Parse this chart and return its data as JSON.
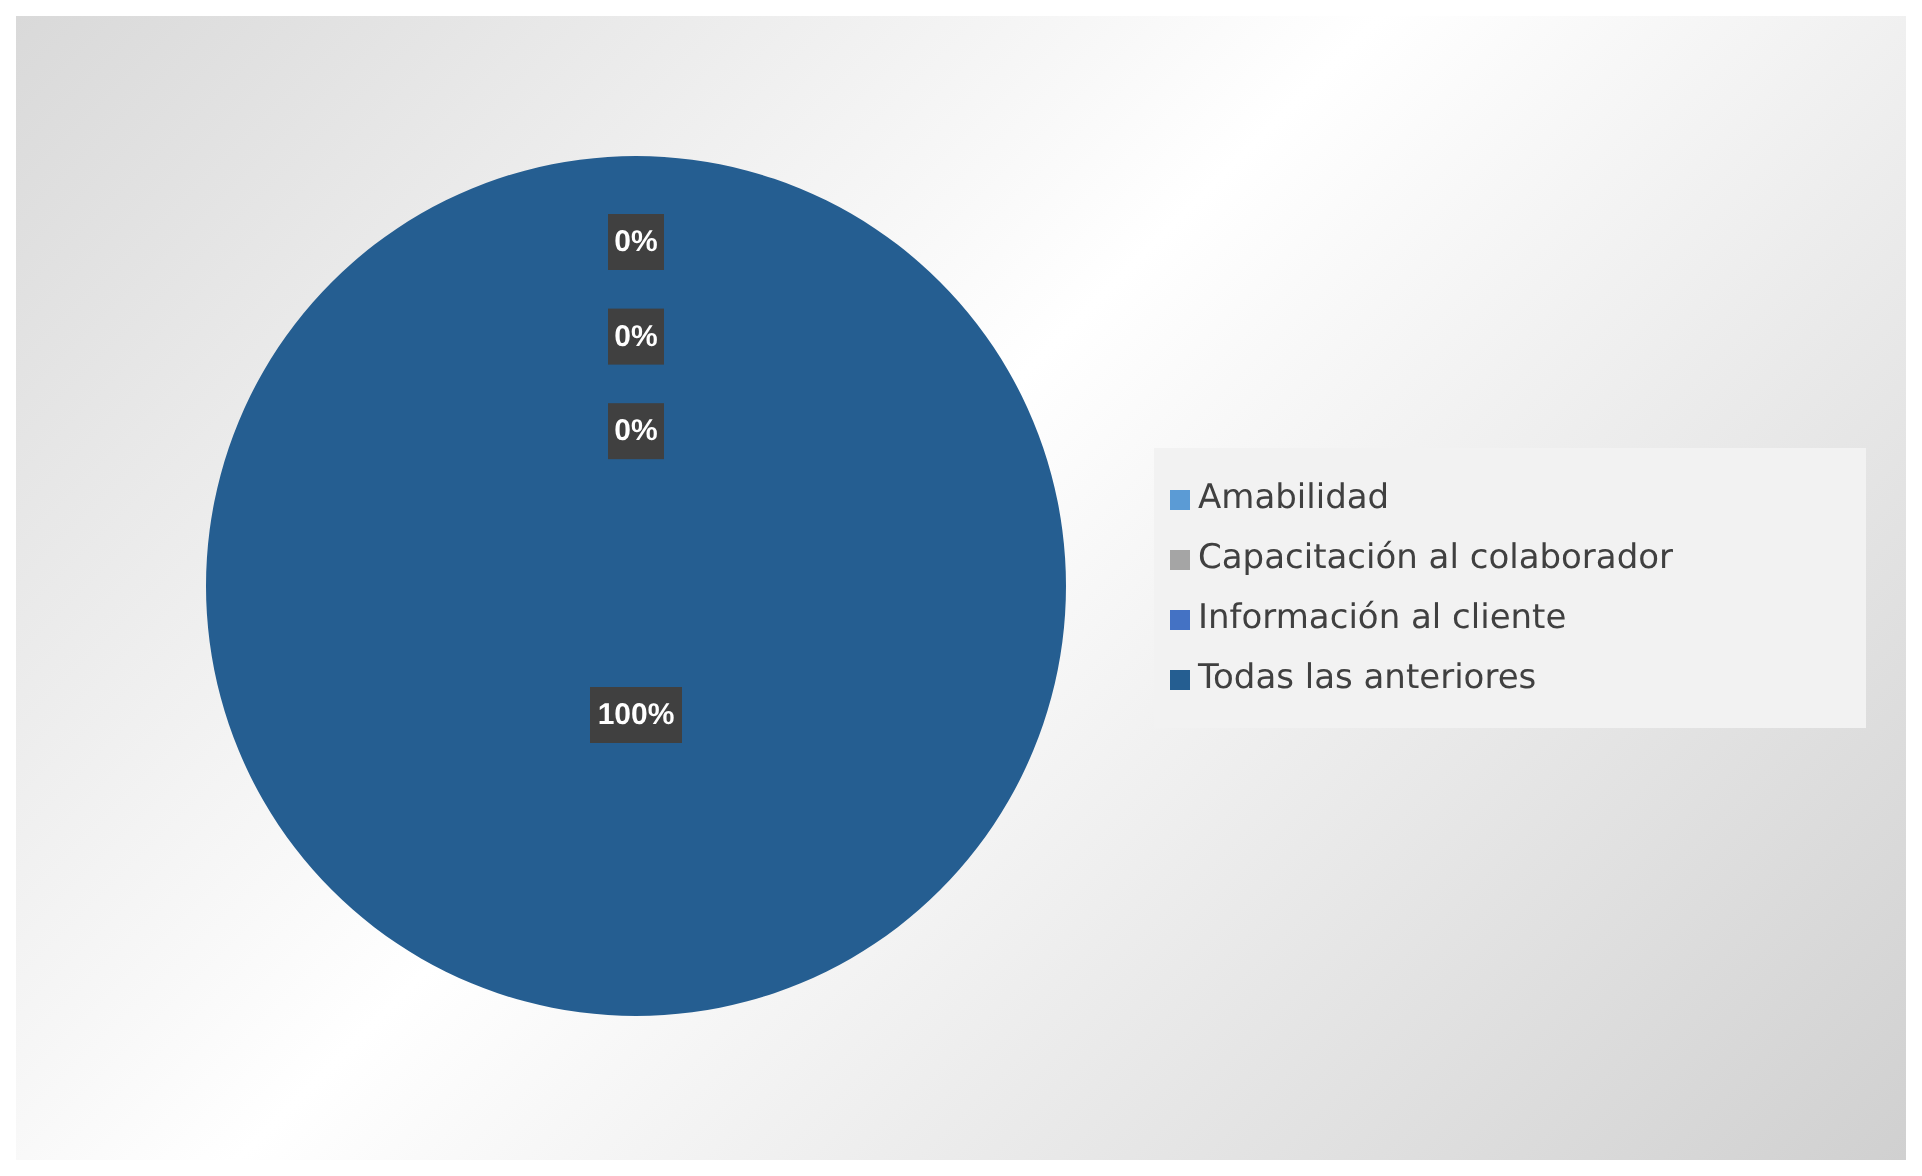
{
  "chart_data": {
    "type": "pie",
    "categories": [
      "Amabilidad",
      "Capacitación al colaborador",
      "Información al cliente",
      "Todas las anteriores"
    ],
    "values": [
      0,
      0,
      0,
      100
    ],
    "colors": [
      "#5b9bd5",
      "#a5a5a5",
      "#4472c4",
      "#255e91"
    ],
    "value_labels": [
      "0%",
      "0%",
      "0%",
      "100%"
    ],
    "legend": "right"
  }
}
